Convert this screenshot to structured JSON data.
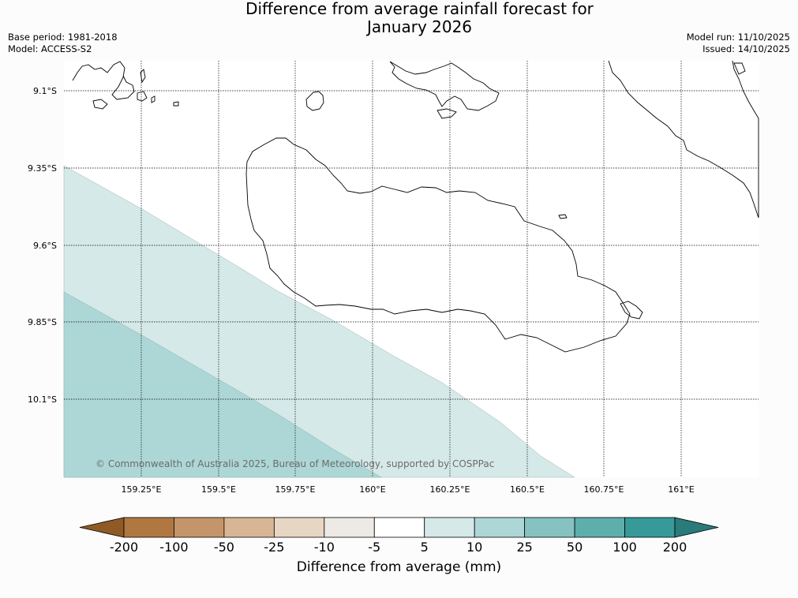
{
  "title_line1": "Difference from average rainfall forecast for",
  "title_line2": "January 2026",
  "base_period": "Base period: 1981-2018",
  "model": "Model: ACCESS-S2",
  "model_run": "Model run: 11/10/2025",
  "issued": "Issued: 14/10/2025",
  "copyright": "© Commonwealth of Australia 2025, Bureau of Meteorology, supported by COSPPac",
  "lat_labels": [
    "9.1°S",
    "9.35°S",
    "9.6°S",
    "9.85°S",
    "10.1°S"
  ],
  "lon_labels": [
    "159.25°E",
    "159.5°E",
    "159.75°E",
    "160°E",
    "160.25°E",
    "160.5°E",
    "160.75°E",
    "161°E"
  ],
  "colorbar": {
    "title": "Difference from average (mm)",
    "ticks": [
      "-200",
      "-100",
      "-50",
      "-25",
      "-10",
      "-5",
      "5",
      "10",
      "25",
      "50",
      "100",
      "200"
    ],
    "colors": [
      "#8f5a26",
      "#b07840",
      "#c4956a",
      "#d8b695",
      "#e8d6c5",
      "#ede9e5",
      "#ffffff",
      "#d5e9e8",
      "#add7d6",
      "#86c2c1",
      "#5eaeac",
      "#359a98",
      "#2a7b7a"
    ]
  },
  "map": {
    "ocean": "#ffffff",
    "zone_5_10": "#d5e9e8",
    "zone_10_25": "#add7d6",
    "coast_color": "#000000"
  }
}
